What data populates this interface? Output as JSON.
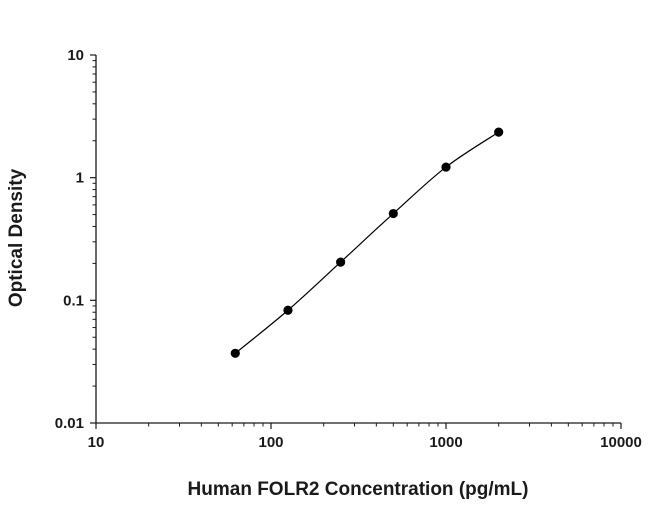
{
  "chart_data": {
    "type": "scatter",
    "xlabel": "Human FOLR2 Concentration (pg/mL)",
    "ylabel": "Optical Density",
    "x_scale": "log",
    "y_scale": "log",
    "xlim": [
      10,
      10000
    ],
    "ylim": [
      0.01,
      10
    ],
    "x_ticks": [
      10,
      100,
      1000,
      10000
    ],
    "y_ticks": [
      0.01,
      0.1,
      1,
      10
    ],
    "x_tick_labels": [
      "10",
      "100",
      "1000",
      "10000"
    ],
    "y_tick_labels": [
      "0.01",
      "0.1",
      "1",
      "10"
    ],
    "grid": false,
    "legend": "none",
    "marker_color": "#000000",
    "line_color": "#000000",
    "series": [
      {
        "x": [
          62.5,
          125,
          250,
          500,
          1000,
          2000
        ],
        "y": [
          0.037,
          0.083,
          0.205,
          0.51,
          1.22,
          2.35
        ],
        "fit": "smooth-curve"
      }
    ]
  }
}
